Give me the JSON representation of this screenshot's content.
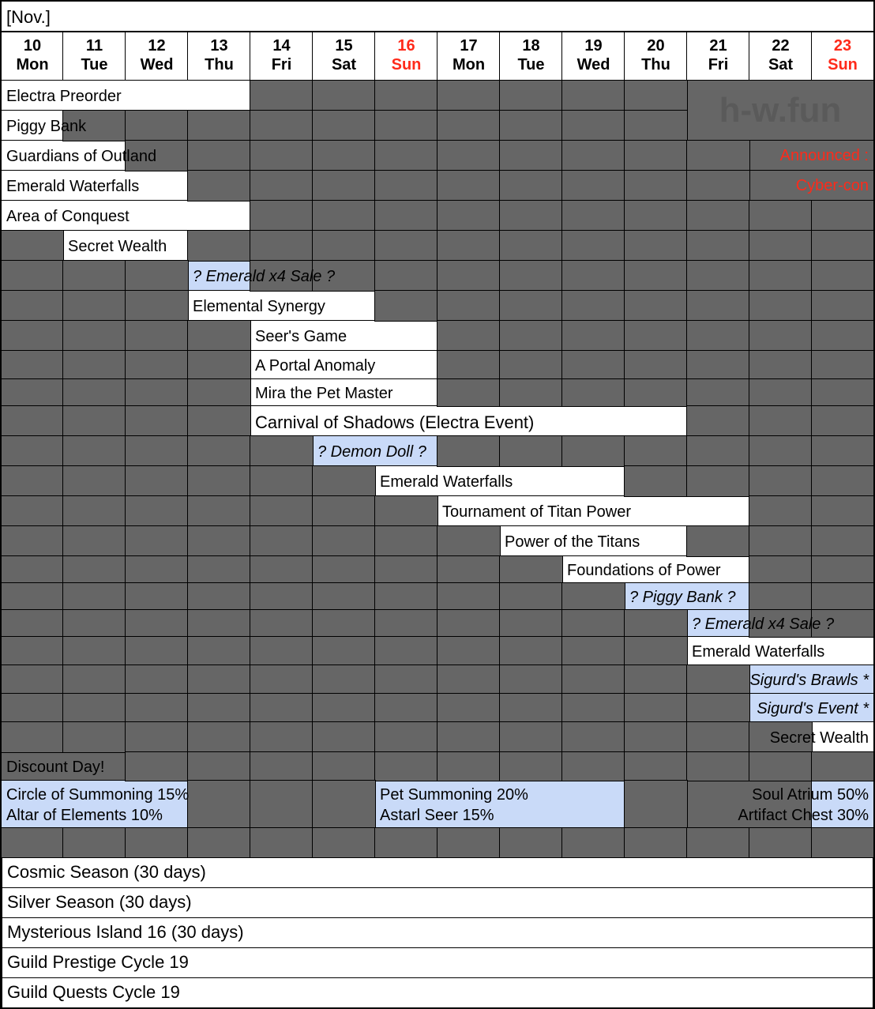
{
  "month_label": "[Nov.]",
  "colors": {
    "gray": "#666666",
    "white": "#ffffff",
    "blue": "#c9daf8",
    "weekend_red": "#ff2a1a"
  },
  "days": [
    {
      "date": "10",
      "weekday": "Mon",
      "weekend": false
    },
    {
      "date": "11",
      "weekday": "Tue",
      "weekend": false
    },
    {
      "date": "12",
      "weekday": "Wed",
      "weekend": false
    },
    {
      "date": "13",
      "weekday": "Thu",
      "weekend": false
    },
    {
      "date": "14",
      "weekday": "Fri",
      "weekend": false
    },
    {
      "date": "15",
      "weekday": "Sat",
      "weekend": false
    },
    {
      "date": "16",
      "weekday": "Sun",
      "weekend": true
    },
    {
      "date": "17",
      "weekday": "Mon",
      "weekend": false
    },
    {
      "date": "18",
      "weekday": "Tue",
      "weekend": false
    },
    {
      "date": "19",
      "weekday": "Wed",
      "weekend": false
    },
    {
      "date": "20",
      "weekday": "Thu",
      "weekend": false
    },
    {
      "date": "21",
      "weekday": "Fri",
      "weekend": false
    },
    {
      "date": "22",
      "weekday": "Sat",
      "weekend": false
    },
    {
      "date": "23",
      "weekday": "Sun",
      "weekend": true
    }
  ],
  "watermark": "h-w.fun",
  "announcement": {
    "line1": "Announced :",
    "line2": "Cyber-con"
  },
  "rows": [
    [
      {
        "text": "Electra Preorder",
        "start": 10,
        "end": 13,
        "style": "white"
      }
    ],
    [
      {
        "text": "Piggy Bank",
        "start": 10,
        "end": 10,
        "style": "white"
      }
    ],
    [
      {
        "text": "Guardians of Outland",
        "start": 10,
        "end": 11,
        "style": "white"
      }
    ],
    [
      {
        "text": "Emerald Waterfalls",
        "start": 10,
        "end": 12,
        "style": "white"
      }
    ],
    [
      {
        "text": "Area of Conquest",
        "start": 10,
        "end": 13,
        "style": "white"
      }
    ],
    [
      {
        "text": "Secret Wealth",
        "start": 11,
        "end": 12,
        "style": "white"
      }
    ],
    [
      {
        "text": "? Emerald x4 Sale ?",
        "start": 13,
        "end": 13,
        "style": "blue",
        "italic": true
      }
    ],
    [
      {
        "text": "Elemental Synergy",
        "start": 13,
        "end": 15,
        "style": "white"
      }
    ],
    [
      {
        "text": "Seer's Game",
        "start": 14,
        "end": 16,
        "style": "white"
      }
    ],
    [
      {
        "text": "A Portal Anomaly",
        "start": 14,
        "end": 16,
        "style": "white"
      }
    ],
    [
      {
        "text": "Mira the Pet Master",
        "start": 14,
        "end": 16,
        "style": "white"
      }
    ],
    [
      {
        "text": "Carnival of Shadows (Electra Event)",
        "start": 14,
        "end": 20,
        "style": "white",
        "big": true
      }
    ],
    [
      {
        "text": "? Demon Doll ?",
        "start": 15,
        "end": 16,
        "style": "blue",
        "italic": true
      }
    ],
    [
      {
        "text": "Emerald Waterfalls",
        "start": 16,
        "end": 19,
        "style": "white"
      }
    ],
    [
      {
        "text": "Tournament of Titan Power",
        "start": 17,
        "end": 21,
        "style": "white"
      }
    ],
    [
      {
        "text": "Power of the Titans",
        "start": 18,
        "end": 20,
        "style": "white"
      }
    ],
    [
      {
        "text": "Foundations of Power",
        "start": 19,
        "end": 21,
        "style": "white"
      }
    ],
    [
      {
        "text": "? Piggy Bank ?",
        "start": 20,
        "end": 21,
        "style": "blue",
        "italic": true
      }
    ],
    [
      {
        "text": "? Emerald x4 Sale ?",
        "start": 21,
        "end": 21,
        "style": "blue",
        "italic": true
      }
    ],
    [
      {
        "text": "Emerald Waterfalls",
        "start": 21,
        "end": 23,
        "style": "white"
      }
    ],
    [
      {
        "text": "Sigurd's Brawls *",
        "start": 22,
        "end": 23,
        "style": "blue",
        "italic": true,
        "align": "right"
      }
    ],
    [
      {
        "text": "Sigurd's Event *",
        "start": 22,
        "end": 23,
        "style": "blue",
        "italic": true,
        "align": "right"
      }
    ],
    [
      {
        "text": "Secret Wealth",
        "start": 23,
        "end": 23,
        "style": "white",
        "align": "right"
      }
    ],
    [
      {
        "text": "Discount Day!",
        "start": 10,
        "end": 11,
        "style": "gray"
      }
    ],
    [
      {
        "text": "Circle of Summoning 15%\nAltar of Elements 10%",
        "start": 10,
        "end": 12,
        "style": "blue"
      },
      {
        "text": "Pet Summoning 20%\nAstarl Seer 15%",
        "start": 16,
        "end": 19,
        "style": "blue"
      },
      {
        "text": "",
        "start": 21,
        "end": 22,
        "style": "gray"
      },
      {
        "text": "Soul Atrium 50%\nArtifact Chest 30%",
        "start": 23,
        "end": 23,
        "style": "blue",
        "align": "right"
      }
    ],
    []
  ],
  "seasons": [
    "Cosmic Season (30 days)",
    "Silver Season (30 days)",
    "Mysterious Island 16 (30 days)",
    "Guild Prestige Cycle 19",
    "Guild Quests Cycle 19"
  ]
}
